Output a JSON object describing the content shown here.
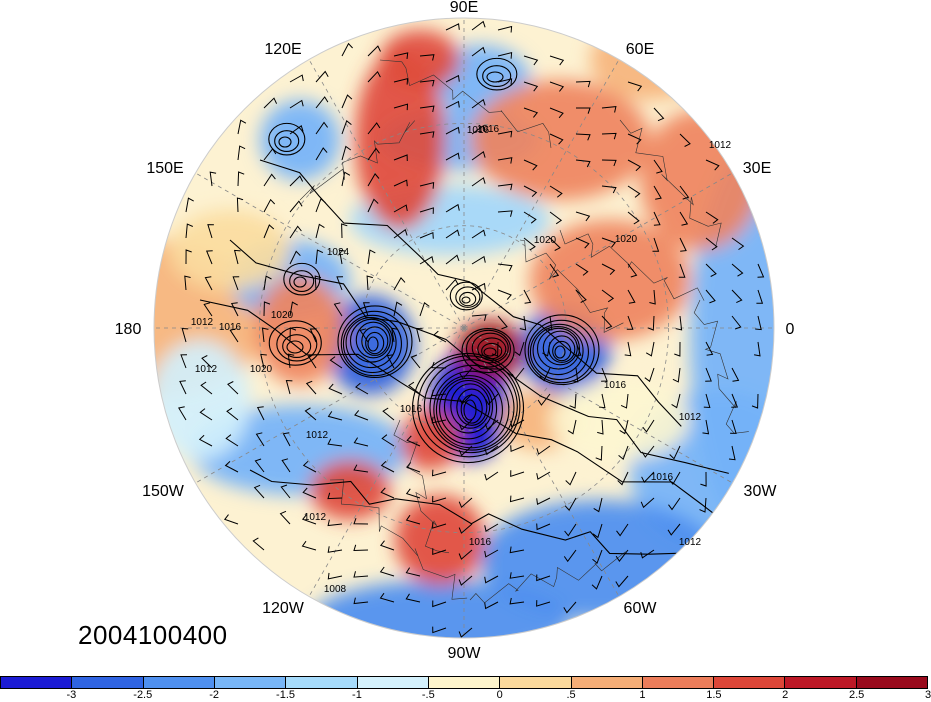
{
  "map": {
    "projection": "north-polar-stereographic",
    "longitude_labels": [
      "90E",
      "60E",
      "30E",
      "0",
      "30W",
      "60W",
      "90W",
      "120W",
      "150W",
      "180",
      "150E",
      "120E"
    ],
    "contour_labels": [
      "1016",
      "1012",
      "1020",
      "1024",
      "1020",
      "1012",
      "1016",
      "1012",
      "1020",
      "1016",
      "1020",
      "1016",
      "1012",
      "1012",
      "1016",
      "1012",
      "1008",
      "1016",
      "1012",
      "1016"
    ],
    "palette": [
      "#1010d0",
      "#2a5fe0",
      "#4d8ef0",
      "#74b2f8",
      "#a2d7fb",
      "#d2f0fc",
      "#fdf6d0",
      "#fbdca0",
      "#f6b47c",
      "#ef8460",
      "#e04b3c",
      "#c01a26",
      "#9c0a1c"
    ]
  },
  "timestamp": "2004100400",
  "colorbar": {
    "colors": [
      "#1b1bd4",
      "#2f64e2",
      "#4f90ef",
      "#78b6f7",
      "#a6dbfb",
      "#d4f1fc",
      "#fdf4cc",
      "#fbd99c",
      "#f5ae77",
      "#ec7d5a",
      "#dd4638",
      "#bd1826",
      "#990a1c"
    ],
    "labels": [
      "-3",
      "-2.5",
      "-2",
      "-1.5",
      "-1",
      "-.5",
      "0",
      ".5",
      "1",
      "1.5",
      "2",
      "2.5",
      "3"
    ]
  }
}
